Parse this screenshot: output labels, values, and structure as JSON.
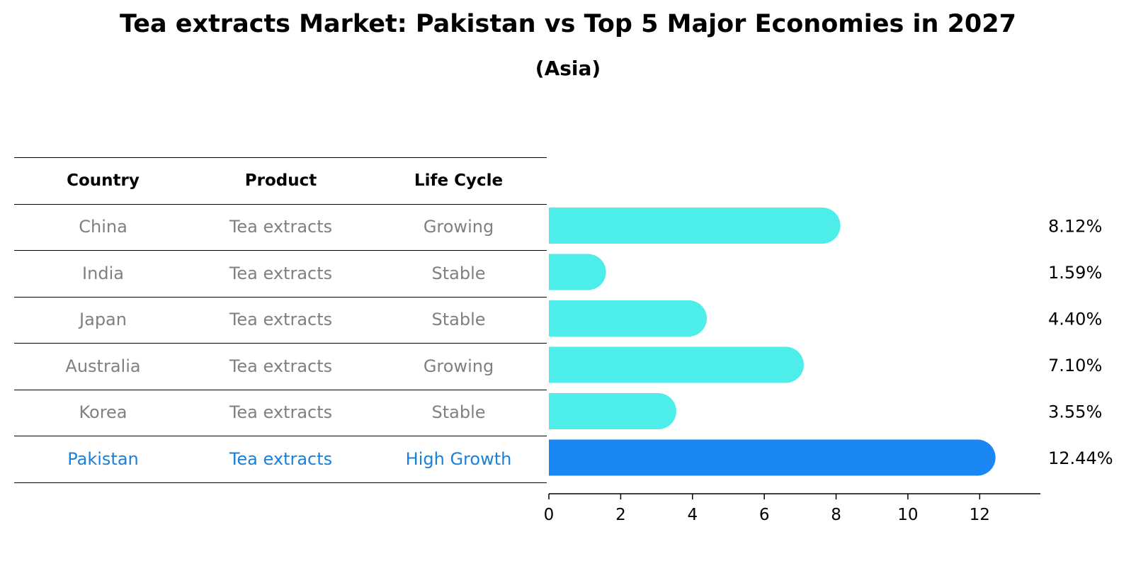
{
  "title": "Tea extracts Market: Pakistan vs Top 5 Major Economies in 2027",
  "subtitle": "(Asia)",
  "table": {
    "headers": [
      "Country",
      "Product",
      "Life Cycle"
    ],
    "rows": [
      {
        "country": "China",
        "product": "Tea extracts",
        "life_cycle": "Growing"
      },
      {
        "country": "India",
        "product": "Tea extracts",
        "life_cycle": "Stable"
      },
      {
        "country": "Japan",
        "product": "Tea extracts",
        "life_cycle": "Stable"
      },
      {
        "country": "Australia",
        "product": "Tea extracts",
        "life_cycle": "Growing"
      },
      {
        "country": "Korea",
        "product": "Tea extracts",
        "life_cycle": "Stable"
      },
      {
        "country": "Pakistan",
        "product": "Tea extracts",
        "life_cycle": "High Growth"
      }
    ]
  },
  "chart_data": {
    "type": "bar",
    "orientation": "horizontal",
    "categories": [
      "China",
      "India",
      "Japan",
      "Australia",
      "Korea",
      "Pakistan"
    ],
    "values": [
      8.12,
      1.59,
      4.4,
      7.1,
      3.55,
      12.44
    ],
    "value_labels": [
      "8.12%",
      "1.59%",
      "4.40%",
      "7.10%",
      "3.55%",
      "12.44%"
    ],
    "xlim": [
      0,
      13
    ],
    "xticks": [
      0,
      2,
      4,
      6,
      8,
      10,
      12
    ],
    "highlight_category": "Pakistan",
    "colors": {
      "default": "#4deeea",
      "highlight": "#1a87f5"
    },
    "grid": false
  }
}
